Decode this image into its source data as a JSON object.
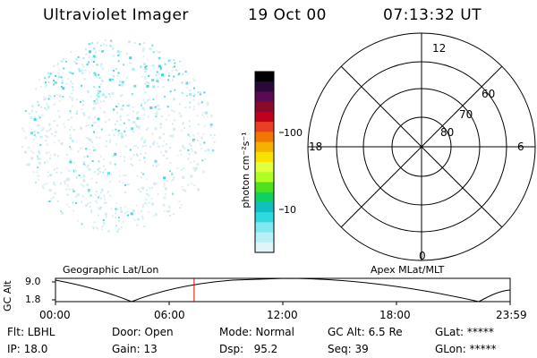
{
  "header": {
    "instrument": "Ultraviolet Imager",
    "date": "19 Oct 00",
    "time": "07:13:32 UT"
  },
  "colorbar": {
    "unit_label": "photon cm⁻²s⁻¹",
    "tick_labels": [
      "100",
      "10"
    ],
    "colors": [
      "#000000",
      "#2a0a3a",
      "#5a0a55",
      "#8a0a2a",
      "#c00020",
      "#e84020",
      "#f07800",
      "#f5b000",
      "#f8e000",
      "#e0ff40",
      "#b0ff20",
      "#50e020",
      "#10d060",
      "#10c0c0",
      "#30d8e0",
      "#80e8f0",
      "#b8f0f5",
      "#e0f5f8"
    ]
  },
  "polar_plot": {
    "mlt_labels": {
      "top": "12",
      "left": "18",
      "right": "6",
      "bottom": "0"
    },
    "lat_labels": [
      "60",
      "70",
      "80"
    ]
  },
  "timeline": {
    "left_title": "Geographic Lat/Lon",
    "right_title": "Apex MLat/MLT",
    "y_axis_label": "GC Alt",
    "y_ticks": [
      "9.0",
      "1.8"
    ],
    "x_ticks": [
      "00:00",
      "06:00",
      "12:00",
      "18:00",
      "23:59"
    ],
    "current_time_fraction": 0.305
  },
  "footer": {
    "row1": {
      "flt": "Flt: LBHL",
      "door": "Door: Open",
      "mode": "Mode: Normal",
      "gc_alt": "GC Alt: 6.5 Re",
      "glat": "GLat: *****"
    },
    "row2": {
      "ip": "IP: 18.0",
      "gain": "Gain: 13",
      "dsp": "Dsp:   95.2",
      "seq": "Seq: 39",
      "glon": "GLon: *****"
    }
  }
}
